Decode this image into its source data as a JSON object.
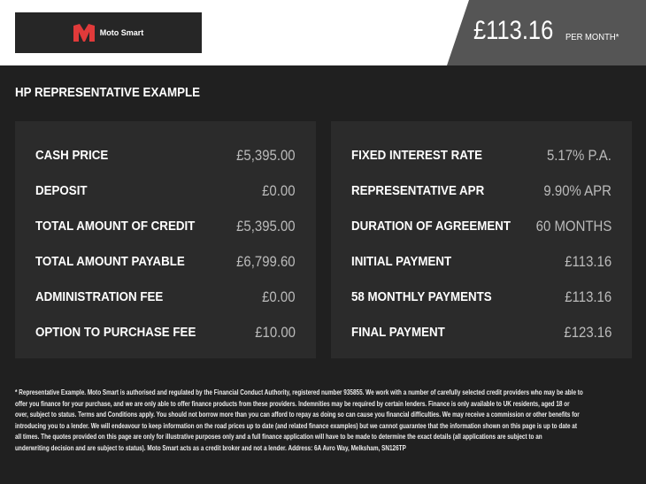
{
  "header": {
    "brand": "Moto Smart",
    "price": "£113.16",
    "per_month": "PER MONTH*",
    "brand_color": "#e03a3a"
  },
  "title": "HP REPRESENTATIVE EXAMPLE",
  "left": [
    {
      "label": "CASH PRICE",
      "value": "£5,395.00"
    },
    {
      "label": "DEPOSIT",
      "value": "£0.00"
    },
    {
      "label": "TOTAL AMOUNT OF CREDIT",
      "value": "£5,395.00"
    },
    {
      "label": "TOTAL AMOUNT PAYABLE",
      "value": "£6,799.60"
    },
    {
      "label": "ADMINISTRATION FEE",
      "value": "£0.00"
    },
    {
      "label": "OPTION TO PURCHASE FEE",
      "value": "£10.00"
    }
  ],
  "right": [
    {
      "label": "FIXED INTEREST RATE",
      "value": "5.17% P.A."
    },
    {
      "label": "REPRESENTATIVE APR",
      "value": "9.90% APR"
    },
    {
      "label": "DURATION OF AGREEMENT",
      "value": "60 MONTHS"
    },
    {
      "label": "INITIAL PAYMENT",
      "value": "£113.16"
    },
    {
      "label": "58 MONTHLY PAYMENTS",
      "value": "£113.16"
    },
    {
      "label": "FINAL PAYMENT",
      "value": "£123.16"
    }
  ],
  "footer": [
    "* Representative Example. Moto Smart is authorised and regulated by the Financial Conduct Authority, registered number 935855. We work with a number of carefully selected credit providers who may be able to",
    "offer you finance for your purchase, and we are only able to offer finance products from these providers. Indemnities may be required by certain lenders. Finance is only available to UK residents, aged 18 or",
    "over, subject to status. Terms and Conditions apply. You should not borrow more than you can afford to repay as doing so can cause you financial difficulties. We may receive a commission or other benefits for",
    "introducing you to a lender. We will endeavour to keep information on the road prices up to date (and related finance examples) but we cannot guarantee that the information shown on this page is up to date at",
    "all times. The quotes provided on this page are only for illustrative purposes only and a full finance application will have to be made to determine the exact details (all applications are subject to an",
    "underwriting decision and are subject to status). Moto Smart acts as a credit broker and not a lender. Address: 6A Avro Way, Melksham, SN126TP"
  ]
}
